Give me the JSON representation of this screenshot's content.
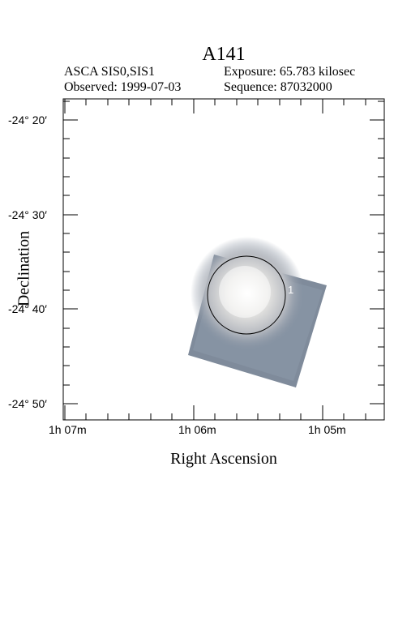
{
  "header": {
    "title": "A141",
    "instrument": "ASCA SIS0,SIS1",
    "exposure": "Exposure: 65.783 kilosec",
    "observed": "Observed: 1999-07-03",
    "sequence": "Sequence: 87032000"
  },
  "axes": {
    "xlabel": "Right Ascension",
    "ylabel": "Declination",
    "x_ticks": [
      "1h 07m",
      "1h 06m",
      "1h 05m"
    ],
    "y_ticks": [
      "-24° 20′",
      "-24° 30′",
      "-24° 40′",
      "-24° 50′"
    ]
  },
  "source": {
    "label": "1"
  }
}
